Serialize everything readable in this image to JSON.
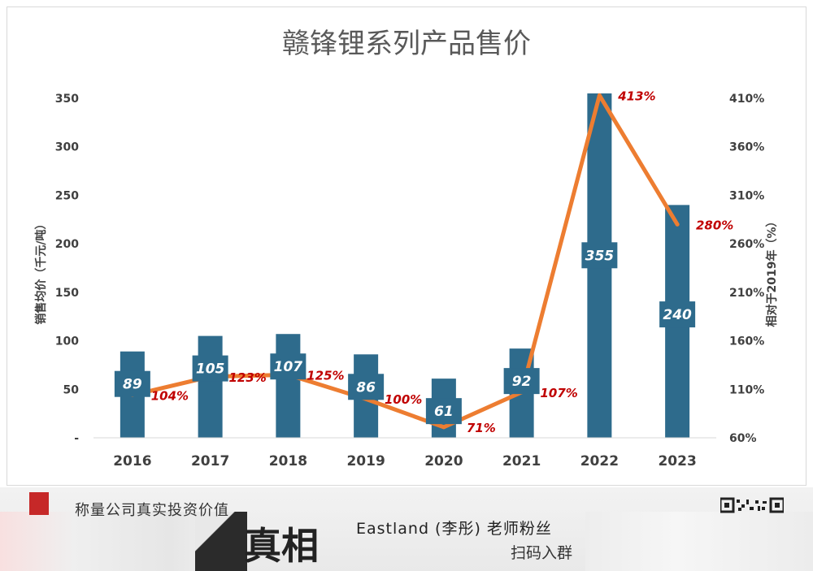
{
  "chart_data": {
    "type": "bar",
    "title": "赣锋锂系列产品售价",
    "categories": [
      "2016",
      "2017",
      "2018",
      "2019",
      "2020",
      "2021",
      "2022",
      "2023"
    ],
    "series": [
      {
        "type": "bar",
        "axis": "left",
        "values": [
          89,
          105,
          107,
          86,
          61,
          92,
          355,
          240
        ],
        "labels": [
          "89",
          "105",
          "107",
          "86",
          "61",
          "92",
          "355",
          "240"
        ]
      },
      {
        "type": "line",
        "axis": "right",
        "values": [
          104,
          123,
          125,
          100,
          71,
          107,
          413,
          280
        ],
        "labels": [
          "104%",
          "123%",
          "125%",
          "100%",
          "71%",
          "107%",
          "413%",
          "280%"
        ]
      }
    ],
    "ylabel": "销售均价（千元/吨）",
    "y2label": "相对于2019年（%）",
    "ylim": [
      0,
      350
    ],
    "y2lim": [
      60,
      410
    ],
    "yticks": [
      "-",
      "50",
      "100",
      "150",
      "200",
      "250",
      "300",
      "350"
    ],
    "y2ticks": [
      "60%",
      "110%",
      "160%",
      "210%",
      "260%",
      "310%",
      "360%",
      "410%"
    ],
    "grid": false,
    "colors": {
      "bar": "#2e6b8c",
      "line": "#ed7d31",
      "line_label": "#c00000",
      "axis_text": "#404040",
      "title": "#595959"
    }
  },
  "banner": {
    "tagline": "称量公司真实投资价值",
    "big_text": "真相",
    "teacher": "Eastland (李彤) 老师粉丝",
    "scan": "扫码入群",
    "qr_icon": "qr-code-icon"
  }
}
